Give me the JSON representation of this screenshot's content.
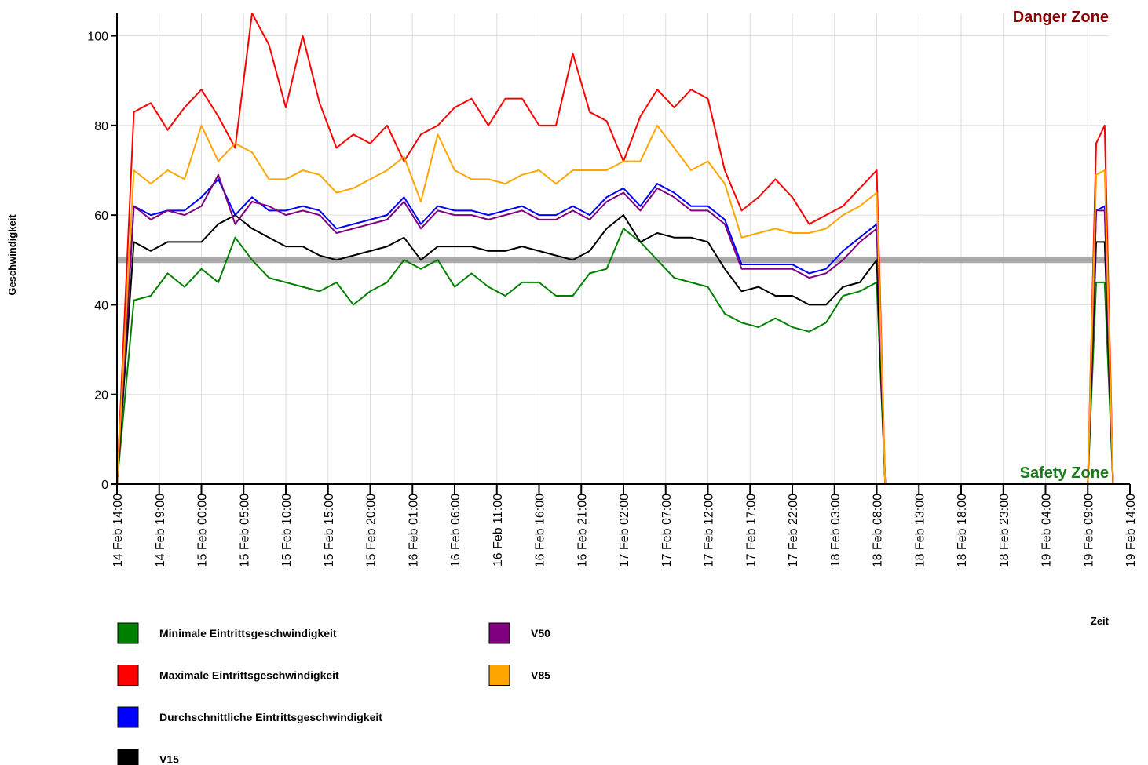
{
  "chart_data": {
    "type": "line",
    "y_label": "Geschwindigkeit",
    "x_label": "Zeit",
    "annotations": [
      {
        "text": "Danger Zone",
        "color": "#8b0000"
      },
      {
        "text": "Safety Zone",
        "color": "#1a7a1a"
      }
    ],
    "reference_line": {
      "value": 50,
      "color": "#aaaaaa"
    },
    "x": [
      "14 Feb 14:00",
      "14 Feb 16:00",
      "14 Feb 18:00",
      "14 Feb 20:00",
      "14 Feb 22:00",
      "15 Feb 00:00",
      "15 Feb 02:00",
      "15 Feb 04:00",
      "15 Feb 06:00",
      "15 Feb 08:00",
      "15 Feb 10:00",
      "15 Feb 12:00",
      "15 Feb 14:00",
      "15 Feb 16:00",
      "15 Feb 18:00",
      "15 Feb 20:00",
      "15 Feb 22:00",
      "16 Feb 00:00",
      "16 Feb 02:00",
      "16 Feb 04:00",
      "16 Feb 06:00",
      "16 Feb 08:00",
      "16 Feb 10:00",
      "16 Feb 12:00",
      "16 Feb 14:00",
      "16 Feb 16:00",
      "16 Feb 18:00",
      "16 Feb 20:00",
      "16 Feb 22:00",
      "17 Feb 00:00",
      "17 Feb 02:00",
      "17 Feb 04:00",
      "17 Feb 06:00",
      "17 Feb 08:00",
      "17 Feb 10:00",
      "17 Feb 12:00",
      "17 Feb 14:00",
      "17 Feb 16:00",
      "17 Feb 18:00",
      "17 Feb 20:00",
      "17 Feb 22:00",
      "18 Feb 00:00",
      "18 Feb 02:00",
      "18 Feb 04:00",
      "18 Feb 06:00",
      "18 Feb 08:00",
      "18 Feb 09:00",
      "19 Feb 09:00",
      "19 Feb 10:00",
      "19 Feb 11:00",
      "19 Feb 12:00"
    ],
    "series": [
      {
        "name": "Minimale Eintrittsgeschwindigkeit",
        "color": "#008000",
        "values": [
          0,
          41,
          42,
          47,
          44,
          48,
          45,
          55,
          50,
          46,
          45,
          44,
          43,
          45,
          40,
          43,
          45,
          50,
          48,
          50,
          44,
          47,
          44,
          42,
          45,
          45,
          42,
          42,
          47,
          48,
          57,
          54,
          50,
          46,
          45,
          44,
          38,
          36,
          35,
          37,
          35,
          34,
          36,
          42,
          43,
          45,
          0,
          0,
          45,
          45,
          0
        ]
      },
      {
        "name": "Maximale Eintrittsgeschwindigkeit",
        "color": "#ff0000",
        "values": [
          0,
          83,
          85,
          79,
          84,
          88,
          82,
          75,
          105,
          98,
          84,
          100,
          85,
          75,
          78,
          76,
          80,
          72,
          78,
          80,
          84,
          86,
          80,
          86,
          86,
          80,
          80,
          96,
          83,
          81,
          72,
          82,
          88,
          84,
          88,
          86,
          70,
          61,
          64,
          68,
          64,
          58,
          60,
          62,
          66,
          70,
          0,
          0,
          76,
          80,
          0
        ]
      },
      {
        "name": "Durchschnittliche Eintrittsgeschwindigkeit",
        "color": "#0000ff",
        "values": [
          0,
          62,
          60,
          61,
          61,
          64,
          68,
          60,
          64,
          61,
          61,
          62,
          61,
          57,
          58,
          59,
          60,
          64,
          58,
          62,
          61,
          61,
          60,
          61,
          62,
          60,
          60,
          62,
          60,
          64,
          66,
          62,
          67,
          65,
          62,
          62,
          59,
          49,
          49,
          49,
          49,
          47,
          48,
          52,
          55,
          58,
          0,
          0,
          61,
          62,
          0
        ]
      },
      {
        "name": "V15",
        "color": "#000000",
        "values": [
          0,
          54,
          52,
          54,
          54,
          54,
          58,
          60,
          57,
          55,
          53,
          53,
          51,
          50,
          51,
          52,
          53,
          55,
          50,
          53,
          53,
          53,
          52,
          52,
          53,
          52,
          51,
          50,
          52,
          57,
          60,
          54,
          56,
          55,
          55,
          54,
          48,
          43,
          44,
          42,
          42,
          40,
          40,
          44,
          45,
          50,
          0,
          0,
          54,
          54,
          0
        ]
      },
      {
        "name": "V50",
        "color": "#800080",
        "values": [
          0,
          62,
          59,
          61,
          60,
          62,
          69,
          58,
          63,
          62,
          60,
          61,
          60,
          56,
          57,
          58,
          59,
          63,
          57,
          61,
          60,
          60,
          59,
          60,
          61,
          59,
          59,
          61,
          59,
          63,
          65,
          61,
          66,
          64,
          61,
          61,
          58,
          48,
          48,
          48,
          48,
          46,
          47,
          50,
          54,
          57,
          0,
          0,
          61,
          61,
          0
        ]
      },
      {
        "name": "V85",
        "color": "#ffa500",
        "values": [
          0,
          70,
          67,
          70,
          68,
          80,
          72,
          76,
          74,
          68,
          68,
          70,
          69,
          65,
          66,
          68,
          70,
          73,
          63,
          78,
          70,
          68,
          68,
          67,
          69,
          70,
          67,
          70,
          70,
          70,
          72,
          72,
          80,
          75,
          70,
          72,
          67,
          55,
          56,
          57,
          56,
          56,
          57,
          60,
          62,
          65,
          0,
          0,
          69,
          70,
          0
        ]
      }
    ],
    "xlim": [
      "14 Feb 14:00",
      "19 Feb 14:00"
    ],
    "xticks": [
      "14 Feb 14:00",
      "14 Feb 19:00",
      "15 Feb 00:00",
      "15 Feb 05:00",
      "15 Feb 10:00",
      "15 Feb 15:00",
      "15 Feb 20:00",
      "16 Feb 01:00",
      "16 Feb 06:00",
      "16 Feb 11:00",
      "16 Feb 16:00",
      "16 Feb 21:00",
      "17 Feb 02:00",
      "17 Feb 07:00",
      "17 Feb 12:00",
      "17 Feb 17:00",
      "17 Feb 22:00",
      "18 Feb 03:00",
      "18 Feb 08:00",
      "18 Feb 13:00",
      "18 Feb 18:00",
      "18 Feb 23:00",
      "19 Feb 04:00",
      "19 Feb 09:00",
      "19 Feb 14:00"
    ],
    "ylim": [
      0,
      105
    ],
    "yticks": [
      0,
      20,
      40,
      60,
      80,
      100
    ],
    "grid": true
  }
}
